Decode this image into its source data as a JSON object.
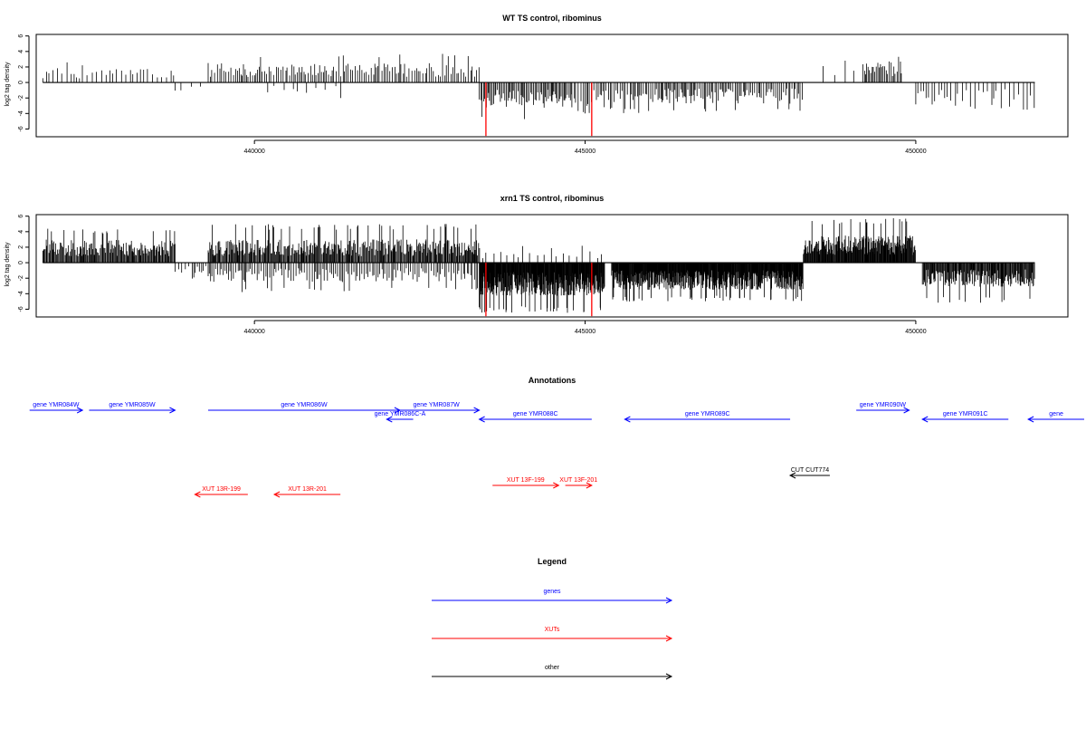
{
  "chart_data": [
    {
      "type": "bar",
      "title": "WT TS control, ribominus",
      "ylabel": "log2 tag density",
      "xlabel": "",
      "xlim": [
        436700,
        452300
      ],
      "ylim": [
        -7,
        6.2
      ],
      "yticks": [
        6,
        4,
        2,
        0,
        -2,
        -4,
        -6
      ],
      "xticks": [
        440000,
        445000,
        450000
      ],
      "grid": false,
      "density_profile": {
        "baseline_span": [
          436800,
          451800
        ],
        "regions": [
          {
            "start": 436800,
            "end": 438800,
            "sign": 1,
            "typical": 1.5,
            "max": 2.6,
            "spacing": 55
          },
          {
            "start": 438800,
            "end": 439300,
            "sign": -1,
            "typical": 1.0,
            "max": 1.2,
            "spacing": 150
          },
          {
            "start": 439300,
            "end": 443400,
            "sign": 1,
            "typical": 2.0,
            "max": 3.8,
            "spacing": 30
          },
          {
            "start": 440200,
            "end": 441400,
            "sign": -1,
            "typical": 1.2,
            "max": 2.2,
            "spacing": 110
          },
          {
            "start": 443400,
            "end": 444800,
            "sign": -1,
            "typical": 2.6,
            "max": 4.8,
            "spacing": 18
          },
          {
            "start": 444800,
            "end": 445700,
            "sign": -1,
            "typical": 2.8,
            "max": 4.0,
            "spacing": 30
          },
          {
            "start": 445700,
            "end": 448300,
            "sign": -1,
            "typical": 2.2,
            "max": 4.0,
            "spacing": 25
          },
          {
            "start": 448600,
            "end": 449200,
            "sign": 1,
            "typical": 2.5,
            "max": 3.2,
            "spacing": 200
          },
          {
            "start": 449200,
            "end": 449800,
            "sign": 1,
            "typical": 2.2,
            "max": 3.8,
            "spacing": 22
          },
          {
            "start": 450000,
            "end": 451800,
            "sign": -1,
            "typical": 2.5,
            "max": 3.8,
            "spacing": 55
          }
        ],
        "highlight_bars": [
          {
            "x": 443500,
            "value": -6.9,
            "color": "#ff0000"
          },
          {
            "x": 445100,
            "value": -6.9,
            "color": "#ff0000"
          }
        ]
      }
    },
    {
      "type": "bar",
      "title": "xrn1 TS control, ribominus",
      "ylabel": "log2 tag density",
      "xlabel": "",
      "xlim": [
        436700,
        452300
      ],
      "ylim": [
        -7,
        6.2
      ],
      "yticks": [
        6,
        4,
        2,
        0,
        -2,
        -4,
        -6
      ],
      "xticks": [
        440000,
        445000,
        450000
      ],
      "grid": false,
      "density_profile": {
        "baseline_span": [
          436800,
          451800
        ],
        "regions": [
          {
            "start": 436800,
            "end": 438800,
            "sign": 1,
            "typical": 2.4,
            "max": 4.4,
            "spacing": 12
          },
          {
            "start": 438800,
            "end": 439300,
            "sign": -1,
            "typical": 1.2,
            "max": 2.2,
            "spacing": 40
          },
          {
            "start": 439300,
            "end": 443400,
            "sign": 1,
            "typical": 2.4,
            "max": 5.0,
            "spacing": 12
          },
          {
            "start": 439300,
            "end": 443400,
            "sign": -1,
            "typical": 2.0,
            "max": 3.8,
            "spacing": 28
          },
          {
            "start": 443400,
            "end": 445300,
            "sign": -1,
            "typical": 3.4,
            "max": 6.5,
            "spacing": 6
          },
          {
            "start": 443300,
            "end": 445300,
            "sign": 1,
            "typical": 1.2,
            "max": 2.2,
            "spacing": 90
          },
          {
            "start": 445400,
            "end": 448300,
            "sign": -1,
            "typical": 2.8,
            "max": 5.0,
            "spacing": 6
          },
          {
            "start": 448300,
            "end": 450000,
            "sign": 1,
            "typical": 2.8,
            "max": 5.8,
            "spacing": 8
          },
          {
            "start": 450100,
            "end": 451800,
            "sign": -1,
            "typical": 2.5,
            "max": 5.2,
            "spacing": 10
          }
        ],
        "highlight_bars": [
          {
            "x": 443500,
            "value": -6.9,
            "color": "#ff0000"
          },
          {
            "x": 445100,
            "value": -6.9,
            "color": "#ff0000"
          }
        ]
      }
    }
  ],
  "annotations": {
    "title": "Annotations",
    "genes": [
      {
        "label": "gene YMR084W",
        "start": 436600,
        "end": 437400,
        "strand": "+",
        "row": 1
      },
      {
        "label": "gene YMR085W",
        "start": 437500,
        "end": 438800,
        "strand": "+",
        "row": 1
      },
      {
        "label": "gene YMR086W",
        "start": 439300,
        "end": 442200,
        "strand": "+",
        "row": 1
      },
      {
        "label": "gene YMR087W",
        "start": 442100,
        "end": 443400,
        "strand": "+",
        "row": 1
      },
      {
        "label": "gene YMR086C-A",
        "start": 442000,
        "end": 442400,
        "strand": "-",
        "row": 2
      },
      {
        "label": "gene YMR088C",
        "start": 443400,
        "end": 445100,
        "strand": "-",
        "row": 2
      },
      {
        "label": "gene YMR089C",
        "start": 445600,
        "end": 448100,
        "strand": "-",
        "row": 2
      },
      {
        "label": "gene YMR090W",
        "start": 449100,
        "end": 449900,
        "strand": "+",
        "row": 1
      },
      {
        "label": "gene YMR091C",
        "start": 450100,
        "end": 451400,
        "strand": "-",
        "row": 2
      },
      {
        "label": "gene",
        "start": 451700,
        "end": 452600,
        "strand": "-",
        "row": 2
      }
    ],
    "xuts": [
      {
        "label": "XUT 13R-199",
        "start": 439100,
        "end": 439900,
        "strand": "-",
        "row": 2
      },
      {
        "label": "XUT 13R-201",
        "start": 440300,
        "end": 441300,
        "strand": "-",
        "row": 2
      },
      {
        "label": "XUT 13F-199",
        "start": 443600,
        "end": 444600,
        "strand": "+",
        "row": 1
      },
      {
        "label": "XUT 13F-201",
        "start": 444700,
        "end": 445100,
        "strand": "+",
        "row": 1
      }
    ],
    "other": [
      {
        "label": "CUT CUT774",
        "start": 448100,
        "end": 448700,
        "strand": "-",
        "row": 1
      }
    ]
  },
  "legend": {
    "title": "Legend",
    "items": [
      {
        "label": "genes",
        "color": "#0000ff"
      },
      {
        "label": "XUTs",
        "color": "#ff0000"
      },
      {
        "label": "other",
        "color": "#000000"
      }
    ]
  },
  "colors": {
    "genes": "#0000ff",
    "xuts": "#ff0000",
    "other": "#000000",
    "bars": "#000000",
    "highlight": "#ff0000"
  }
}
